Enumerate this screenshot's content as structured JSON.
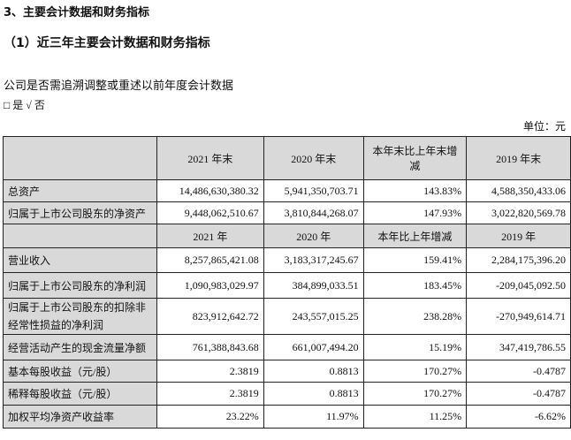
{
  "heading": "3、主要会计数据和财务指标",
  "subheading": "（1）近三年主要会计数据和财务指标",
  "question": "公司是否需追溯调整或重述以前年度会计数据",
  "options": "□ 是  √ 否",
  "unit": "单位：元",
  "header1": [
    "",
    "2021 年末",
    "2020 年末",
    "本年末比上年末增减",
    "2019 年末"
  ],
  "rows1": [
    [
      "总资产",
      "14,486,630,380.32",
      "5,941,350,703.71",
      "143.83%",
      "4,588,350,433.06"
    ],
    [
      "归属于上市公司股东的净资产",
      "9,448,062,510.67",
      "3,810,844,268.07",
      "147.93%",
      "3,022,820,569.78"
    ]
  ],
  "header2": [
    "",
    "2021 年",
    "2020 年",
    "本年比上年增减",
    "2019 年"
  ],
  "rows2": [
    [
      "营业收入",
      "8,257,865,421.08",
      "3,183,317,245.67",
      "159.41%",
      "2,284,175,396.20"
    ],
    [
      "归属于上市公司股东的净利润",
      "1,090,983,029.97",
      "384,899,033.51",
      "183.45%",
      "-209,045,092.50"
    ],
    [
      "归属于上市公司股东的扣除非经常性损益的净利润",
      "823,912,642.72",
      "243,557,015.25",
      "238.28%",
      "-270,949,614.71"
    ],
    [
      "经营活动产生的现金流量净额",
      "761,388,843.68",
      "661,007,494.20",
      "15.19%",
      "347,419,786.55"
    ],
    [
      "基本每股收益（元/股）",
      "2.3819",
      "0.8813",
      "170.27%",
      "-0.4787"
    ],
    [
      "稀释每股收益（元/股）",
      "2.3819",
      "0.8813",
      "170.27%",
      "-0.4787"
    ],
    [
      "加权平均净资产收益率",
      "23.22%",
      "11.97%",
      "11.25%",
      "-6.62%"
    ]
  ]
}
